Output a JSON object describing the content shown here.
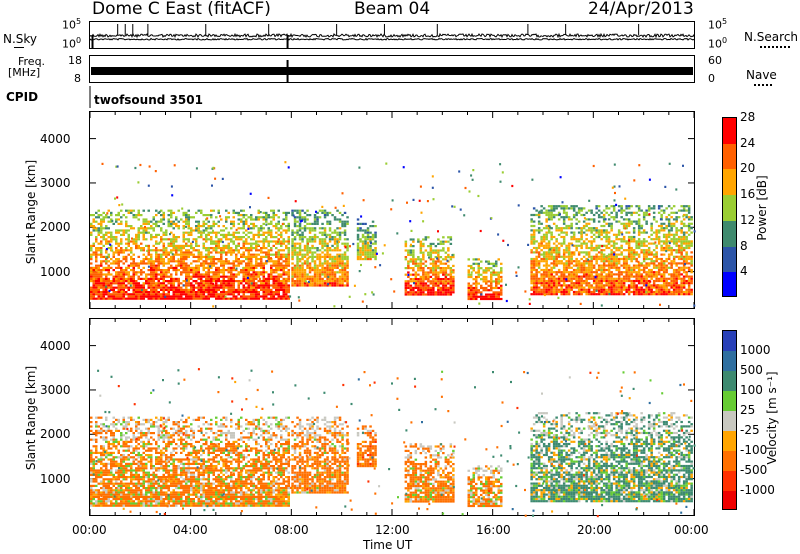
{
  "header": {
    "station": "Dome C East (fitACF)",
    "beam": "Beam 04",
    "date": "24/Apr/2013"
  },
  "params": {
    "nsky_label": "N.Sky",
    "nsky_top": "10^5",
    "nsky_bottom": "10^0",
    "nsearch_label": "N.Search",
    "nsearch_top": "10^5",
    "nsearch_bottom": "10^0",
    "freq_label_1": "Freq.",
    "freq_label_2": "[MHz]",
    "freq_top": "18",
    "freq_bottom": "8",
    "nave_label": "Nave",
    "nave_top": "60",
    "nave_bottom": "0",
    "cpid_label": "CPID",
    "cpid_value": "twofsound 3501"
  },
  "axes": {
    "y_label": "Slant Range [km]",
    "y_ticks": [
      "1000",
      "2000",
      "3000",
      "4000"
    ],
    "x_ticks": [
      "00:00",
      "04:00",
      "08:00",
      "12:00",
      "16:00",
      "20:00",
      "00:00"
    ],
    "x_label": "Time UT"
  },
  "colorbars": {
    "power": {
      "label": "Power [dB]",
      "ticks": [
        "4",
        "8",
        "12",
        "16",
        "20",
        "24",
        "28"
      ],
      "colors": [
        "#0000ff",
        "#2c55a8",
        "#3f8a6e",
        "#9acd32",
        "#ffa500",
        "#ff6000",
        "#ff0000"
      ]
    },
    "velocity": {
      "label": "Velocity [m s⁻¹]",
      "ticks": [
        "1000",
        "500",
        "100",
        "25",
        "-25",
        "-100",
        "-500",
        "-1000"
      ],
      "colors": [
        "#2840b8",
        "#2f6fa0",
        "#3d8a70",
        "#66cc33",
        "#c8c8c0",
        "#ffa500",
        "#ff7000",
        "#ff3000",
        "#ee0000"
      ]
    }
  },
  "chart_data": [
    {
      "type": "heatmap",
      "name": "power",
      "x_range_hours": [
        0,
        24
      ],
      "ylim_km": [
        180,
        4600
      ],
      "colorbar_label": "Power [dB]",
      "colorbar_ticks": [
        4,
        8,
        12,
        16,
        20,
        24,
        28
      ],
      "echo_bands": [
        {
          "t": [
            0.0,
            7.9
          ],
          "range_km": [
            400,
            2400
          ],
          "power_db": 26
        },
        {
          "t": [
            8.0,
            10.2
          ],
          "range_km": [
            700,
            2400
          ],
          "power_db": 22
        },
        {
          "t": [
            10.6,
            11.3
          ],
          "range_km": [
            1300,
            2200
          ],
          "power_db": 18
        },
        {
          "t": [
            12.5,
            14.4
          ],
          "range_km": [
            500,
            1800
          ],
          "power_db": 26
        },
        {
          "t": [
            15.0,
            16.3
          ],
          "range_km": [
            400,
            1300
          ],
          "power_db": 26
        },
        {
          "t": [
            17.5,
            23.9
          ],
          "range_km": [
            500,
            2500
          ],
          "power_db": 24
        }
      ]
    },
    {
      "type": "heatmap",
      "name": "velocity",
      "x_range_hours": [
        0,
        24
      ],
      "ylim_km": [
        180,
        4600
      ],
      "colorbar_label": "Velocity [m s⁻¹]",
      "colorbar_ticks": [
        1000,
        500,
        100,
        25,
        -25,
        -100,
        -500,
        -1000
      ],
      "echo_bands": [
        {
          "t": [
            0.0,
            7.9
          ],
          "range_km": [
            400,
            2400
          ],
          "velocity_ms": -150
        },
        {
          "t": [
            8.0,
            10.2
          ],
          "range_km": [
            700,
            2400
          ],
          "velocity_ms": -200
        },
        {
          "t": [
            10.6,
            11.3
          ],
          "range_km": [
            1300,
            2200
          ],
          "velocity_ms": -300
        },
        {
          "t": [
            12.5,
            14.4
          ],
          "range_km": [
            500,
            1800
          ],
          "velocity_ms": -200
        },
        {
          "t": [
            15.0,
            16.3
          ],
          "range_km": [
            400,
            1300
          ],
          "velocity_ms": -150
        },
        {
          "t": [
            17.5,
            23.9
          ],
          "range_km": [
            500,
            2500
          ],
          "velocity_ms": 150
        }
      ]
    }
  ]
}
